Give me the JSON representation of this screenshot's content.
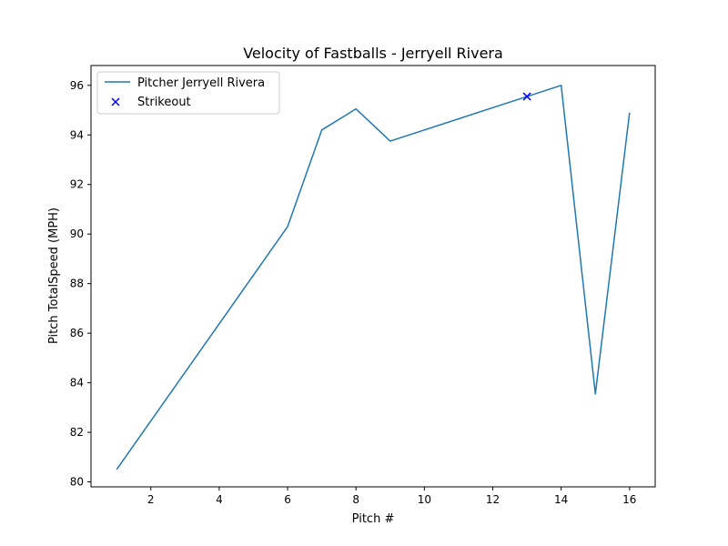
{
  "chart_data": {
    "type": "line",
    "title": "Velocity of Fastballs - Jerryell Rivera",
    "xlabel": "Pitch #",
    "ylabel": "Pitch TotalSpeed (MPH)",
    "xlim": [
      0.25,
      16.75
    ],
    "ylim": [
      79.8,
      96.8
    ],
    "xticks": [
      2,
      4,
      6,
      8,
      10,
      12,
      14,
      16
    ],
    "yticks": [
      80,
      82,
      84,
      86,
      88,
      90,
      92,
      94,
      96
    ],
    "grid": false,
    "legend_position": "top-left",
    "series": [
      {
        "name": "Pitcher Jerryell Rivera",
        "kind": "line",
        "color": "#1f77b4",
        "points": [
          {
            "x": 1,
            "y": 80.5
          },
          {
            "x": 6,
            "y": 90.3
          },
          {
            "x": 7,
            "y": 94.2
          },
          {
            "x": 8,
            "y": 95.05
          },
          {
            "x": 9,
            "y": 93.75
          },
          {
            "x": 13,
            "y": 95.55
          },
          {
            "x": 14,
            "y": 96.0
          },
          {
            "x": 15,
            "y": 83.55
          },
          {
            "x": 16,
            "y": 94.9
          }
        ]
      },
      {
        "name": "Strikeout",
        "kind": "scatter",
        "marker": "x",
        "color": "#0000ff",
        "points": [
          {
            "x": 13,
            "y": 95.55
          }
        ]
      }
    ]
  }
}
